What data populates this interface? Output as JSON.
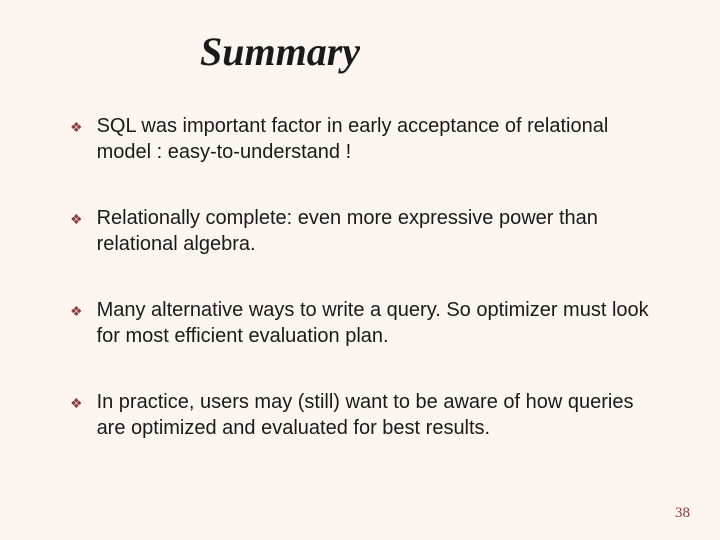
{
  "slide": {
    "title": "Summary",
    "title_fontsize": 40,
    "title_font": "Times New Roman italic",
    "background_color": "#fdf6f0",
    "text_color": "#1a1a1a",
    "bullet_color": "#8b3a3a",
    "bullet_glyph": "❖",
    "body_fontsize": 20,
    "bullets": [
      {
        "text": "SQL was important factor in early acceptance of relational model : easy-to-understand !"
      },
      {
        "text": "Relationally complete:   even more expressive power than relational algebra."
      },
      {
        "text": "Many alternative ways to write a query.  So optimizer must look for most efficient evaluation plan."
      },
      {
        "text": "In practice, users may (still) want to be aware of how queries are optimized and evaluated for best results."
      }
    ],
    "page_number": "38",
    "page_number_color": "#8b3a3a"
  }
}
